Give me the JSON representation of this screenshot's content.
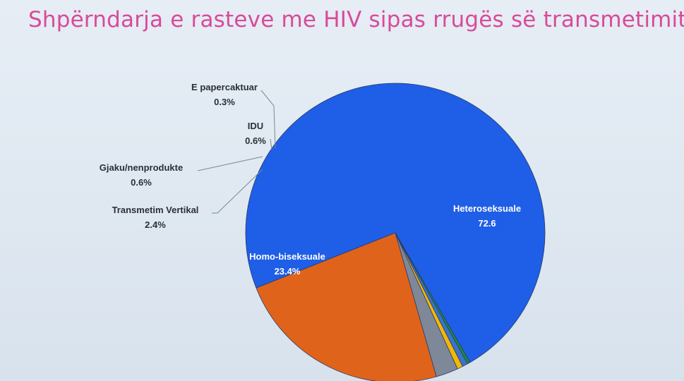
{
  "chart_data": {
    "type": "pie",
    "title": "Shpërndarja e rasteve me HIV sipas rrugës së transmetimit!",
    "slices": [
      {
        "name": "Heteroseksuale",
        "value": 72.6,
        "label": "72.6",
        "color": "#1f5ee6"
      },
      {
        "name": "Homo-biseksuale",
        "value": 23.4,
        "label": "23.4%",
        "color": "#e0631c"
      },
      {
        "name": "Transmetim Vertikal",
        "value": 2.4,
        "label": "2.4%",
        "color": "#7f8899"
      },
      {
        "name": "Gjaku/nenprodukte",
        "value": 0.6,
        "label": "0.6%",
        "color": "#f2b807"
      },
      {
        "name": "IDU",
        "value": 0.6,
        "label": "0.6%",
        "color": "#3a73c9"
      },
      {
        "name": "E papercaktuar",
        "value": 0.3,
        "label": "0.3%",
        "color": "#1f8a3a"
      }
    ]
  }
}
